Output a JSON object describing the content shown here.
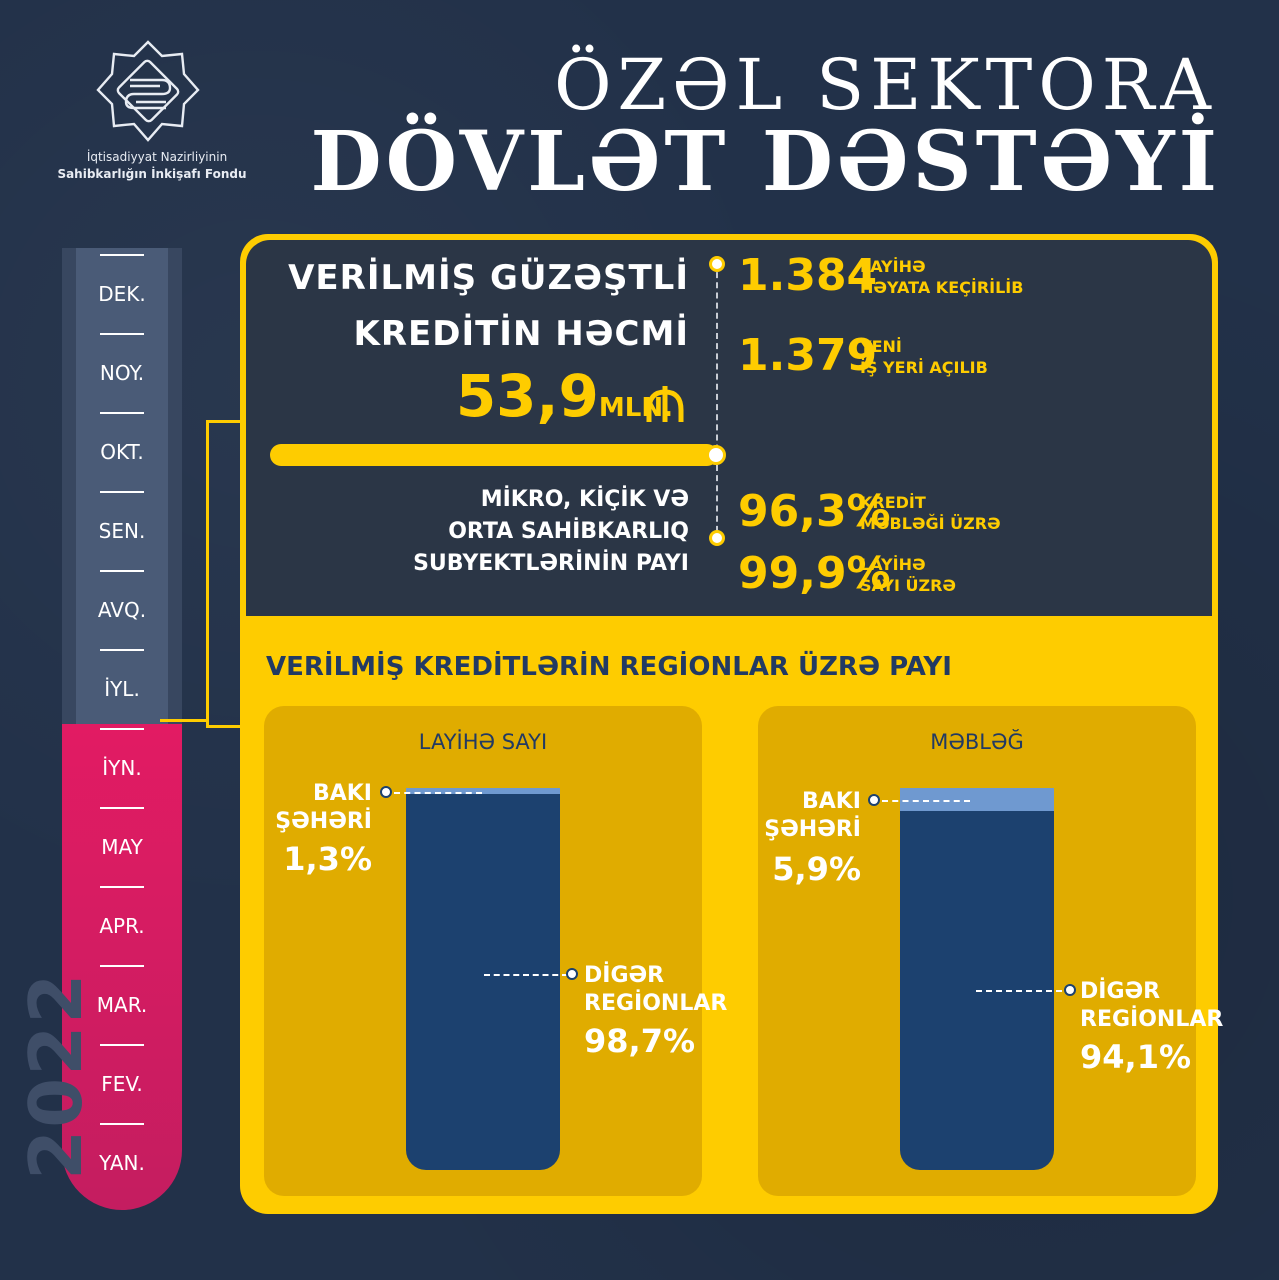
{
  "logo": {
    "line1": "İqtisadiyyat Nazirliyinin",
    "line2": "Sahibkarlığın İnkişafı Fondu"
  },
  "title": {
    "line1": "ÖZƏL SEKTORA",
    "line2": "DÖVLƏT DƏSTƏYİ"
  },
  "timeline": {
    "year": "2022",
    "months": [
      "DEK.",
      "NOY.",
      "OKT.",
      "SEN.",
      "AVQ.",
      "İYL.",
      "İYN.",
      "MAY",
      "APR.",
      "MAR.",
      "FEV.",
      "YAN."
    ]
  },
  "credit": {
    "line1": "VERİLMİŞ GÜZƏŞTLİ",
    "line2": "KREDİTİN HƏCMİ",
    "amount": "53,9",
    "unit": "MLN."
  },
  "stats": [
    {
      "value": "1.384",
      "label1": "LAYİHƏ",
      "label2": "HƏYATA KEÇİRİLİB"
    },
    {
      "value": "1.379",
      "label1": "YENİ",
      "label2": "İŞ YERİ AÇILIB"
    }
  ],
  "sme": {
    "line1": "MİKRO, KİÇİK VƏ",
    "line2": "ORTA SAHİBKARLIQ",
    "line3": "SUBYEKTLƏRİNİN PAYI",
    "stats": [
      {
        "value": "96,3%",
        "label1": "KREDİT",
        "label2": "MƏBLƏĞİ ÜZRƏ"
      },
      {
        "value": "99,9%",
        "label1": "LAYİHƏ",
        "label2": "SAYI ÜZRƏ"
      }
    ]
  },
  "regions": {
    "title": "VERİLMİŞ KREDİTLƏRİN REGİONLAR ÜZRƏ PAYI",
    "cards": [
      {
        "title": "LAYİHƏ SAYI",
        "baki1": "BAKI",
        "baki2": "ŞƏHƏRİ",
        "baki_pct": "1,3%",
        "other1": "DİGƏR",
        "other2": "REGİONLAR",
        "other_pct": "98,7%"
      },
      {
        "title": "MƏBLƏĞ",
        "baki1": "BAKI",
        "baki2": "ŞƏHƏRİ",
        "baki_pct": "5,9%",
        "other1": "DİGƏR",
        "other2": "REGİONLAR",
        "other_pct": "94,1%"
      }
    ]
  },
  "colors": {
    "background": "#223149",
    "accent": "#fecc00",
    "dark_panel": "#2b3646",
    "vessel": "#1c416f",
    "pink": "#e21b63"
  },
  "icons": {
    "currency": "manat-sign-icon",
    "logo": "fund-logo-icon"
  }
}
